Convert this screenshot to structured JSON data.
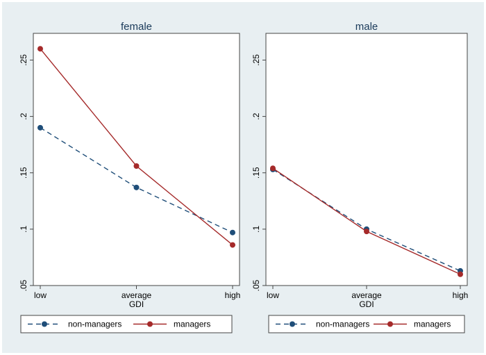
{
  "chart_data": [
    {
      "type": "line",
      "title": "female",
      "xlabel": "GDI",
      "ylabel": "",
      "categories": [
        "low",
        "average",
        "high"
      ],
      "yticks": [
        ".05",
        ".1",
        ".15",
        ".2",
        ".25"
      ],
      "ylim": [
        0.05,
        0.27
      ],
      "series": [
        {
          "name": "non-managers",
          "values": [
            0.19,
            0.137,
            0.097
          ],
          "color": "#1f4e79",
          "dashed": true
        },
        {
          "name": "managers",
          "values": [
            0.26,
            0.156,
            0.086
          ],
          "color": "#a52a2a",
          "dashed": false
        }
      ],
      "legend": "bottom"
    },
    {
      "type": "line",
      "title": "male",
      "xlabel": "GDI",
      "ylabel": "",
      "categories": [
        "low",
        "average",
        "high"
      ],
      "yticks": [
        ".05",
        ".1",
        ".15",
        ".2",
        ".25"
      ],
      "ylim": [
        0.05,
        0.27
      ],
      "series": [
        {
          "name": "non-managers",
          "values": [
            0.153,
            0.1,
            0.063
          ],
          "color": "#1f4e79",
          "dashed": true
        },
        {
          "name": "managers",
          "values": [
            0.154,
            0.098,
            0.06
          ],
          "color": "#a52a2a",
          "dashed": false
        }
      ],
      "legend": "bottom"
    }
  ]
}
